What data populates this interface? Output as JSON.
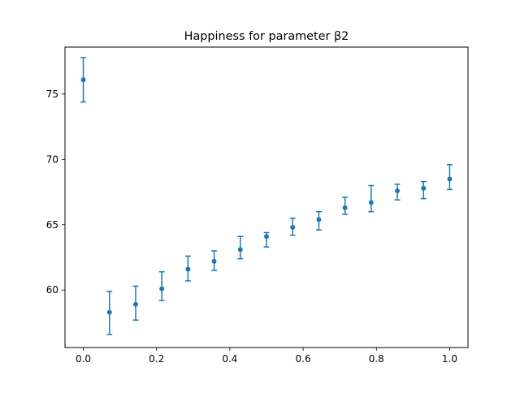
{
  "chart_data": {
    "type": "scatter",
    "title": "Happiness for parameter β2",
    "xlabel": "",
    "ylabel": "",
    "xlim": [
      -0.05,
      1.05
    ],
    "ylim": [
      55.6,
      78.6
    ],
    "xticks": [
      0.0,
      0.2,
      0.4,
      0.6,
      0.8,
      1.0
    ],
    "xtick_labels": [
      "0.0",
      "0.2",
      "0.4",
      "0.6",
      "0.8",
      "1.0"
    ],
    "yticks": [
      60,
      65,
      70,
      75
    ],
    "ytick_labels": [
      "60",
      "65",
      "70",
      "75"
    ],
    "grid": false,
    "legend": "none",
    "series": [
      {
        "color": "#1f77b4",
        "marker": "circle",
        "error_bars": true,
        "points": [
          {
            "x": 0.0,
            "y": 76.1,
            "ylow": 74.4,
            "yhigh": 77.8
          },
          {
            "x": 0.0714,
            "y": 58.3,
            "ylow": 56.6,
            "yhigh": 59.9
          },
          {
            "x": 0.1429,
            "y": 58.9,
            "ylow": 57.7,
            "yhigh": 60.3
          },
          {
            "x": 0.2143,
            "y": 60.1,
            "ylow": 59.2,
            "yhigh": 61.4
          },
          {
            "x": 0.2857,
            "y": 61.6,
            "ylow": 60.7,
            "yhigh": 62.6
          },
          {
            "x": 0.3571,
            "y": 62.2,
            "ylow": 61.5,
            "yhigh": 63.0
          },
          {
            "x": 0.4286,
            "y": 63.1,
            "ylow": 62.4,
            "yhigh": 64.1
          },
          {
            "x": 0.5,
            "y": 64.1,
            "ylow": 63.3,
            "yhigh": 64.4
          },
          {
            "x": 0.5714,
            "y": 64.8,
            "ylow": 64.2,
            "yhigh": 65.5
          },
          {
            "x": 0.6429,
            "y": 65.4,
            "ylow": 64.6,
            "yhigh": 66.0
          },
          {
            "x": 0.7143,
            "y": 66.3,
            "ylow": 65.8,
            "yhigh": 67.1
          },
          {
            "x": 0.7857,
            "y": 66.7,
            "ylow": 66.0,
            "yhigh": 68.0
          },
          {
            "x": 0.8571,
            "y": 67.6,
            "ylow": 66.9,
            "yhigh": 68.1
          },
          {
            "x": 0.9286,
            "y": 67.8,
            "ylow": 67.0,
            "yhigh": 68.3
          },
          {
            "x": 1.0,
            "y": 68.5,
            "ylow": 67.7,
            "yhigh": 69.6
          }
        ]
      }
    ]
  }
}
